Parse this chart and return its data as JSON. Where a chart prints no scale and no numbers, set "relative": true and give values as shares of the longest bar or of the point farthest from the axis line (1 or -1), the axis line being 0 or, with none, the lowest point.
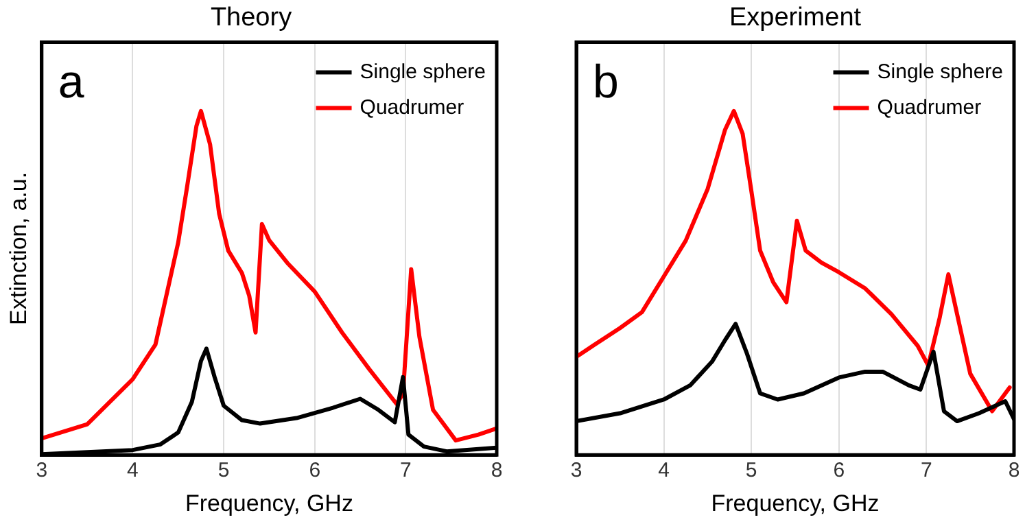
{
  "chart_data": [
    {
      "type": "line",
      "title": "Theory",
      "xlabel": "Frequency, GHz",
      "ylabel": "Extinction, a.u.",
      "relative": true,
      "xlim": [
        3,
        8
      ],
      "xticks": [
        3,
        4,
        5,
        6,
        7,
        8
      ],
      "grid": "x",
      "legend": "top right",
      "annotations": [
        "a"
      ],
      "series": [
        {
          "name": "Single sphere",
          "color": "#000000",
          "x": [
            3.0,
            4.0,
            4.3,
            4.5,
            4.65,
            4.75,
            4.81,
            4.9,
            5.0,
            5.2,
            5.4,
            5.8,
            6.2,
            6.5,
            6.7,
            6.88,
            6.97,
            7.03,
            7.2,
            7.45,
            8.0
          ],
          "values": [
            0.002,
            0.014,
            0.03,
            0.065,
            0.154,
            0.273,
            0.309,
            0.226,
            0.143,
            0.101,
            0.091,
            0.107,
            0.137,
            0.163,
            0.131,
            0.095,
            0.226,
            0.059,
            0.024,
            0.01,
            0.021
          ]
        },
        {
          "name": "Quadrumer",
          "color": "#ff0000",
          "x": [
            3.0,
            3.5,
            4.0,
            4.25,
            4.5,
            4.6,
            4.7,
            4.75,
            4.85,
            4.95,
            5.05,
            5.2,
            5.28,
            5.35,
            5.42,
            5.5,
            5.7,
            6.0,
            6.3,
            6.6,
            6.9,
            6.97,
            7.06,
            7.15,
            7.3,
            7.55,
            7.8,
            8.0
          ],
          "values": [
            0.048,
            0.089,
            0.22,
            0.321,
            0.618,
            0.784,
            0.956,
            1,
            0.903,
            0.701,
            0.594,
            0.529,
            0.463,
            0.356,
            0.671,
            0.624,
            0.558,
            0.475,
            0.356,
            0.249,
            0.148,
            0.178,
            0.54,
            0.344,
            0.131,
            0.042,
            0.059,
            0.077
          ]
        }
      ]
    },
    {
      "type": "line",
      "title": "Experiment",
      "xlabel": "Frequency, GHz",
      "relative": true,
      "xlim": [
        3,
        8
      ],
      "xticks": [
        3,
        4,
        5,
        6,
        7,
        8
      ],
      "grid": "x",
      "legend": "top right",
      "annotations": [
        "b"
      ],
      "series": [
        {
          "name": "Single sphere",
          "color": "#000000",
          "x": [
            3.0,
            3.5,
            4.0,
            4.3,
            4.55,
            4.7,
            4.82,
            4.95,
            5.1,
            5.3,
            5.6,
            6.0,
            6.3,
            6.5,
            6.8,
            6.93,
            7.08,
            7.2,
            7.35,
            7.6,
            7.9,
            8.0
          ],
          "values": [
            0.098,
            0.121,
            0.161,
            0.202,
            0.271,
            0.334,
            0.381,
            0.294,
            0.179,
            0.161,
            0.179,
            0.225,
            0.242,
            0.242,
            0.202,
            0.19,
            0.3,
            0.127,
            0.098,
            0.121,
            0.156,
            0.104
          ]
        },
        {
          "name": "Quadrumer",
          "color": "#ff0000",
          "x": [
            3.0,
            3.2,
            3.5,
            3.75,
            4.0,
            4.25,
            4.5,
            4.7,
            4.8,
            4.9,
            5.0,
            5.1,
            5.25,
            5.4,
            5.52,
            5.62,
            5.8,
            6.0,
            6.3,
            6.6,
            6.9,
            7.02,
            7.15,
            7.25,
            7.35,
            7.5,
            7.75,
            7.95
          ],
          "values": [
            0.285,
            0.319,
            0.369,
            0.415,
            0.519,
            0.623,
            0.773,
            0.946,
            1,
            0.934,
            0.767,
            0.594,
            0.502,
            0.444,
            0.681,
            0.594,
            0.559,
            0.531,
            0.484,
            0.409,
            0.317,
            0.26,
            0.398,
            0.525,
            0.409,
            0.236,
            0.127,
            0.196
          ]
        }
      ]
    }
  ]
}
